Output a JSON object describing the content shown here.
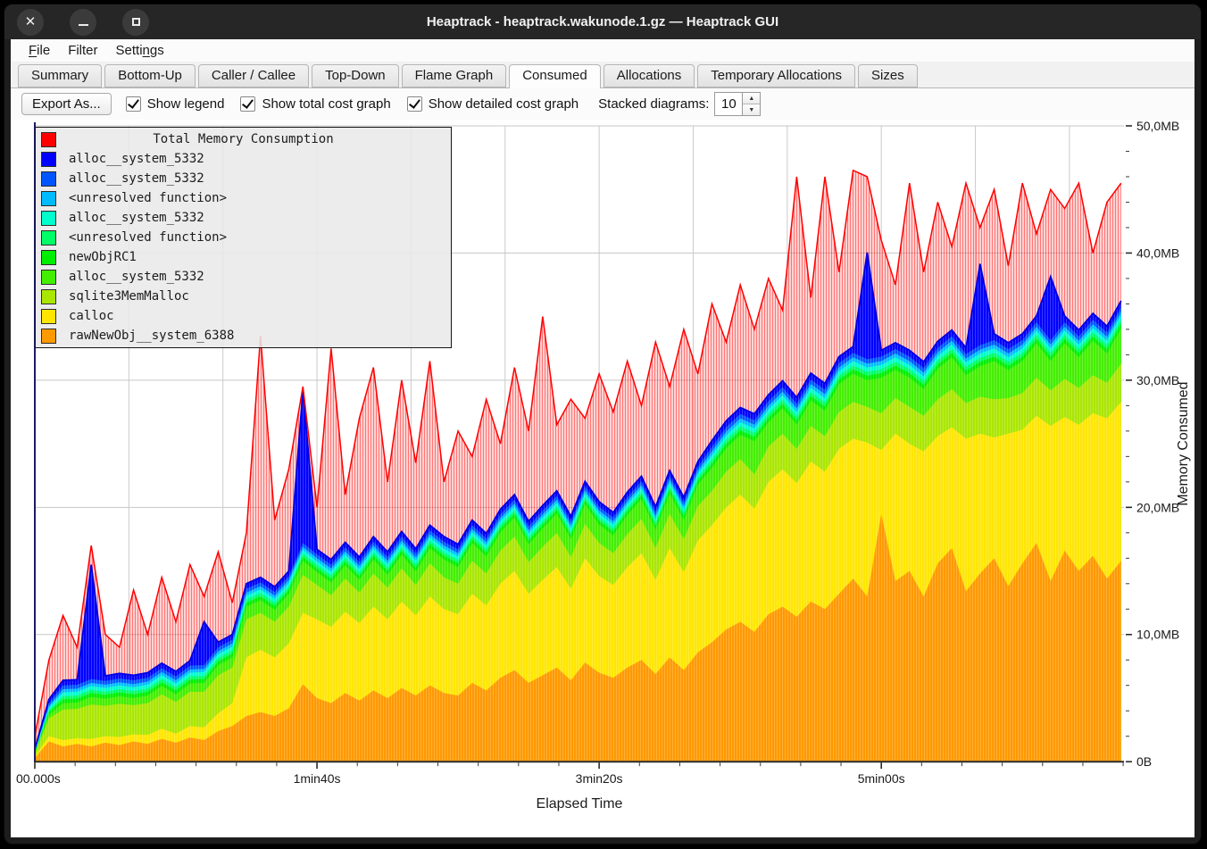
{
  "window": {
    "title": "Heaptrack - heaptrack.wakunode.1.gz — Heaptrack GUI",
    "controls": [
      "close",
      "minimize",
      "maximize"
    ]
  },
  "menu": {
    "items": [
      {
        "label": "File",
        "underline_index": 0
      },
      {
        "label": "Filter",
        "underline_index": -1
      },
      {
        "label": "Settings",
        "underline_index": 5
      }
    ]
  },
  "tabs": {
    "active": "Consumed",
    "items": [
      "Summary",
      "Bottom-Up",
      "Caller / Callee",
      "Top-Down",
      "Flame Graph",
      "Consumed",
      "Allocations",
      "Temporary Allocations",
      "Sizes"
    ]
  },
  "toolbar": {
    "export_label": "Export As...",
    "checkboxes": [
      {
        "label": "Show legend",
        "checked": true
      },
      {
        "label": "Show total cost graph",
        "checked": true
      },
      {
        "label": "Show detailed cost graph",
        "checked": true
      }
    ],
    "stacked_label": "Stacked diagrams:",
    "stacked_value": "10"
  },
  "chart_data": {
    "type": "area",
    "stacked": true,
    "title": "",
    "xlabel": "Elapsed Time",
    "ylabel": "Memory Consumed",
    "xlim_seconds": [
      0,
      386
    ],
    "ylim_mb": [
      0,
      50
    ],
    "grid": true,
    "legend_position": "top-left",
    "x_tick_labels": [
      {
        "seconds": 0,
        "label": "00.000s"
      },
      {
        "seconds": 100,
        "label": "1min40s"
      },
      {
        "seconds": 200,
        "label": "3min20s"
      },
      {
        "seconds": 300,
        "label": "5min00s"
      }
    ],
    "y_tick_labels": [
      {
        "mb": 0,
        "label": "0B"
      },
      {
        "mb": 10,
        "label": "10,0MB"
      },
      {
        "mb": 20,
        "label": "20,0MB"
      },
      {
        "mb": 30,
        "label": "30,0MB"
      },
      {
        "mb": 40,
        "label": "40,0MB"
      },
      {
        "mb": 50,
        "label": "50,0MB"
      }
    ],
    "x_seconds": [
      0,
      5,
      10,
      15,
      20,
      25,
      30,
      35,
      40,
      45,
      50,
      55,
      60,
      65,
      70,
      75,
      80,
      85,
      90,
      95,
      100,
      105,
      110,
      115,
      120,
      125,
      130,
      135,
      140,
      145,
      150,
      155,
      160,
      165,
      170,
      175,
      180,
      185,
      190,
      195,
      200,
      205,
      210,
      215,
      220,
      225,
      230,
      235,
      240,
      245,
      250,
      255,
      260,
      265,
      270,
      275,
      280,
      285,
      290,
      295,
      300,
      305,
      310,
      315,
      320,
      325,
      330,
      335,
      340,
      345,
      350,
      355,
      360,
      365,
      370,
      375,
      380,
      385
    ],
    "total": {
      "name": "Total Memory Consumption",
      "color": "#ff0000",
      "values": [
        2,
        8,
        11.5,
        9,
        17,
        10,
        9,
        13.5,
        10,
        14.5,
        11,
        15.5,
        13,
        16.5,
        12.5,
        18,
        33.5,
        19,
        23,
        29.5,
        20,
        32.5,
        21,
        27,
        31,
        22,
        30,
        23.5,
        31.5,
        22,
        26,
        24,
        28.5,
        25,
        31,
        26,
        35,
        26.5,
        28.5,
        27,
        30.5,
        27.5,
        31.5,
        28,
        33,
        29.5,
        34,
        30.5,
        36,
        33,
        37.5,
        34,
        38,
        35.5,
        46,
        36.5,
        46,
        38.5,
        46.5,
        46,
        41,
        37.5,
        45.5,
        38.5,
        44,
        40.5,
        45.5,
        42,
        45,
        39,
        45.5,
        41.5,
        45,
        43.5,
        45.5,
        40,
        44,
        45.5
      ]
    },
    "series": [
      {
        "name": "alloc__system_5332",
        "color": "#0000ff",
        "values": [
          0.1,
          0.3,
          0.4,
          0.4,
          9,
          0.4,
          0.4,
          0.4,
          0.4,
          0.4,
          0.4,
          0.4,
          3.4,
          0.4,
          0.4,
          0.4,
          0.4,
          0.4,
          0.4,
          12,
          0.4,
          0.4,
          0.4,
          0.4,
          0.4,
          0.4,
          0.4,
          0.4,
          0.4,
          0.4,
          0.4,
          0.4,
          0.4,
          0.4,
          0.4,
          0.4,
          0.4,
          0.4,
          0.4,
          0.4,
          0.4,
          0.4,
          0.4,
          0.4,
          0.4,
          0.4,
          0.4,
          0.4,
          0.5,
          0.5,
          0.5,
          0.5,
          0.5,
          0.5,
          0.5,
          0.5,
          0.5,
          0.5,
          0.5,
          8.4,
          0.5,
          0.5,
          0.5,
          0.5,
          0.5,
          0.5,
          0.5,
          6.4,
          0.5,
          0.5,
          0.5,
          0.5,
          5,
          0.5,
          0.5,
          0.5,
          0.5,
          0.5
        ]
      },
      {
        "name": "alloc__system_5332",
        "color": "#0055ff",
        "values": [
          0.05,
          0.2,
          0.3,
          0.3,
          0.3,
          0.3,
          0.3,
          0.3,
          0.3,
          0.3,
          0.3,
          0.3,
          0.3,
          0.3,
          0.3,
          0.3,
          0.3,
          0.3,
          0.3,
          0.3,
          0.3,
          0.3,
          0.3,
          0.3,
          0.3,
          0.3,
          0.3,
          0.3,
          0.3,
          0.3,
          0.3,
          0.3,
          0.3,
          0.3,
          0.3,
          0.3,
          0.3,
          0.3,
          0.3,
          0.3,
          0.3,
          0.3,
          0.3,
          0.3,
          0.3,
          0.3,
          0.3,
          0.3,
          0.35,
          0.35,
          0.35,
          0.35,
          0.35,
          0.35,
          0.35,
          0.35,
          0.35,
          0.35,
          0.35,
          0.35,
          0.35,
          0.35,
          0.35,
          0.35,
          0.35,
          0.35,
          0.35,
          0.35,
          0.35,
          0.35,
          0.35,
          0.35,
          0.35,
          0.35,
          0.35,
          0.35,
          0.35,
          0.35
        ]
      },
      {
        "name": "<unresolved function>",
        "color": "#00bbff",
        "values": [
          0.05,
          0.15,
          0.25,
          0.25,
          0.25,
          0.25,
          0.25,
          0.25,
          0.25,
          0.25,
          0.25,
          0.25,
          0.25,
          0.25,
          0.25,
          0.25,
          0.25,
          0.25,
          0.25,
          0.25,
          0.25,
          0.25,
          0.25,
          0.25,
          0.25,
          0.25,
          0.25,
          0.25,
          0.25,
          0.25,
          0.25,
          0.25,
          0.25,
          0.25,
          0.25,
          0.25,
          0.25,
          0.25,
          0.25,
          0.25,
          0.25,
          0.25,
          0.25,
          0.25,
          0.25,
          0.25,
          0.25,
          0.25,
          0.3,
          0.3,
          0.3,
          0.3,
          0.3,
          0.3,
          0.3,
          0.3,
          0.3,
          0.3,
          0.3,
          0.3,
          0.3,
          0.3,
          0.3,
          0.3,
          0.3,
          0.3,
          0.3,
          0.3,
          0.3,
          0.3,
          0.3,
          0.3,
          0.3,
          0.3,
          0.3,
          0.3,
          0.3,
          0.3
        ]
      },
      {
        "name": "alloc__system_5332",
        "color": "#00ffcc",
        "values": [
          0.05,
          0.2,
          0.3,
          0.3,
          0.3,
          0.3,
          0.3,
          0.3,
          0.3,
          0.3,
          0.3,
          0.3,
          0.3,
          0.3,
          0.3,
          0.3,
          0.3,
          0.3,
          0.3,
          0.3,
          0.3,
          0.3,
          0.3,
          0.3,
          0.3,
          0.3,
          0.3,
          0.3,
          0.3,
          0.3,
          0.3,
          0.3,
          0.3,
          0.3,
          0.3,
          0.3,
          0.3,
          0.3,
          0.3,
          0.3,
          0.3,
          0.3,
          0.3,
          0.3,
          0.3,
          0.3,
          0.3,
          0.3,
          0.35,
          0.35,
          0.35,
          0.35,
          0.35,
          0.35,
          0.35,
          0.35,
          0.35,
          0.35,
          0.35,
          0.35,
          0.35,
          0.35,
          0.35,
          0.35,
          0.35,
          0.35,
          0.35,
          0.35,
          0.35,
          0.35,
          0.35,
          0.35,
          0.35,
          0.35,
          0.35,
          0.35,
          0.35,
          0.35
        ]
      },
      {
        "name": "<unresolved function>",
        "color": "#00ff66",
        "values": [
          0.05,
          0.15,
          0.25,
          0.25,
          0.25,
          0.25,
          0.25,
          0.25,
          0.25,
          0.25,
          0.25,
          0.25,
          0.25,
          0.25,
          0.25,
          0.25,
          0.25,
          0.25,
          0.25,
          0.25,
          0.25,
          0.25,
          0.25,
          0.25,
          0.25,
          0.25,
          0.25,
          0.25,
          0.25,
          0.25,
          0.25,
          0.25,
          0.25,
          0.25,
          0.25,
          0.25,
          0.25,
          0.25,
          0.25,
          0.25,
          0.25,
          0.25,
          0.25,
          0.25,
          0.25,
          0.25,
          0.25,
          0.25,
          0.3,
          0.3,
          0.3,
          0.3,
          0.3,
          0.3,
          0.3,
          0.3,
          0.3,
          0.3,
          0.3,
          0.3,
          0.3,
          0.3,
          0.3,
          0.3,
          0.3,
          0.3,
          0.3,
          0.3,
          0.3,
          0.3,
          0.3,
          0.3,
          0.3,
          0.3,
          0.3,
          0.3,
          0.3,
          0.3
        ]
      },
      {
        "name": "newObjRC1",
        "color": "#00ee00",
        "values": [
          0.05,
          0.2,
          0.3,
          0.3,
          0.3,
          0.3,
          0.3,
          0.3,
          0.3,
          0.3,
          0.3,
          0.3,
          0.3,
          0.3,
          0.3,
          0.3,
          0.3,
          0.3,
          0.3,
          0.3,
          0.3,
          0.3,
          0.3,
          0.3,
          0.3,
          0.3,
          0.3,
          0.3,
          0.3,
          0.3,
          0.3,
          0.3,
          0.3,
          0.3,
          0.3,
          0.3,
          0.3,
          0.3,
          0.3,
          0.3,
          0.3,
          0.3,
          0.3,
          0.3,
          0.3,
          0.3,
          0.3,
          0.3,
          0.35,
          0.35,
          0.35,
          0.35,
          0.35,
          0.35,
          0.35,
          0.35,
          0.35,
          0.35,
          0.35,
          0.35,
          0.35,
          0.35,
          0.35,
          0.35,
          0.35,
          0.35,
          0.35,
          0.35,
          0.35,
          0.35,
          0.35,
          0.35,
          0.35,
          0.35,
          0.35,
          0.35,
          0.35,
          0.35
        ]
      },
      {
        "name": "alloc__system_5332",
        "color": "#44ee00",
        "values": [
          0.05,
          0.3,
          0.5,
          0.5,
          0.6,
          0.55,
          0.6,
          0.55,
          0.6,
          0.65,
          0.6,
          0.65,
          0.7,
          0.8,
          0.8,
          1,
          1,
          0.95,
          1,
          1.1,
          1,
          1,
          1.05,
          1,
          1.1,
          1,
          1.1,
          1.05,
          1.2,
          1.4,
          1.3,
          1.4,
          1.35,
          1.45,
          1.5,
          1.4,
          1.45,
          1.5,
          1.4,
          1.55,
          1.45,
          1.4,
          1.5,
          1.55,
          1.45,
          1.6,
          1.5,
          1.7,
          1.8,
          1.85,
          1.9,
          2.6,
          1.9,
          2,
          1.9,
          2,
          2,
          2.2,
          2.2,
          2.1,
          2.8,
          2.2,
          2.3,
          2.1,
          2.4,
          2.5,
          2.2,
          2.4,
          3,
          2.2,
          2.5,
          2.7,
          2.3,
          2.8,
          2.4,
          2.7,
          2.3,
          2.8
        ]
      },
      {
        "name": "sqlite3MemMalloc",
        "color": "#aae600",
        "values": [
          0.2,
          1.4,
          2.4,
          2.3,
          2.7,
          2.4,
          2.6,
          2.3,
          2.5,
          2.7,
          2.5,
          2.7,
          2.8,
          3,
          2.8,
          3,
          2.9,
          2.8,
          2.9,
          3,
          2.7,
          2.5,
          2.6,
          2.4,
          2.6,
          2.5,
          2.6,
          2.4,
          2.6,
          2.5,
          2.4,
          2.6,
          2.5,
          2.6,
          2.7,
          2.5,
          2.6,
          2.7,
          2.5,
          2.7,
          2.6,
          2.5,
          2.6,
          2.7,
          2.5,
          2.7,
          2.6,
          2.7,
          2.7,
          2.8,
          2.8,
          2.7,
          2.8,
          2.8,
          2.7,
          2.8,
          2.8,
          2.9,
          2.9,
          2.8,
          2.9,
          2.8,
          2.9,
          2.8,
          2.9,
          3,
          2.8,
          2.9,
          3,
          2.8,
          2.9,
          3,
          2.8,
          3,
          2.9,
          3,
          2.8,
          3
        ]
      },
      {
        "name": "calloc",
        "color": "#ffe600",
        "values": [
          0.1,
          0.4,
          0.5,
          0.45,
          0.6,
          0.5,
          0.65,
          0.55,
          0.7,
          0.8,
          0.7,
          0.9,
          1,
          1.4,
          1.8,
          4.6,
          4.9,
          4.6,
          5.1,
          5.6,
          6.2,
          6,
          6.4,
          6.1,
          6.6,
          6.2,
          6.8,
          6.3,
          7,
          6.6,
          6.4,
          7,
          6.7,
          7.4,
          7.8,
          7,
          7.5,
          7.9,
          7.2,
          8.2,
          7.6,
          7.3,
          7.9,
          8.4,
          7.4,
          8.6,
          7.7,
          8.8,
          9.2,
          9.6,
          10,
          9.7,
          10.4,
          10.8,
          10.5,
          11,
          10.8,
          11.4,
          11,
          12.1,
          5,
          11.6,
          10,
          11.4,
          10,
          9.5,
          12,
          11,
          9.5,
          12,
          10.5,
          10,
          12.2,
          10.5,
          11.5,
          11.2,
          12.6,
          12.5
        ]
      },
      {
        "name": "rawNewObj__system_6388",
        "color": "#ff9900",
        "values": [
          0.3,
          1.6,
          1.2,
          1.4,
          1.2,
          1.5,
          1.3,
          1.6,
          1.4,
          1.8,
          1.5,
          1.9,
          1.7,
          2.4,
          2.8,
          3.6,
          3.9,
          3.6,
          4.2,
          6.1,
          5,
          4.6,
          5.4,
          4.8,
          5.6,
          5,
          5.8,
          5.2,
          6,
          5.4,
          5.2,
          6.2,
          5.6,
          6.6,
          7.2,
          6.2,
          6.8,
          7.4,
          6.4,
          7.8,
          7,
          6.6,
          7.4,
          8,
          6.9,
          8.2,
          7.2,
          8.6,
          9.4,
          10.4,
          11,
          10.2,
          11.6,
          12.2,
          11.4,
          12.6,
          12,
          13.2,
          14.4,
          13,
          19.5,
          14.2,
          15,
          13,
          15.6,
          16.8,
          13.4,
          14.8,
          16,
          13.8,
          15.6,
          17.2,
          14.2,
          16.6,
          15,
          16.2,
          14.4,
          15.8
        ]
      }
    ]
  }
}
